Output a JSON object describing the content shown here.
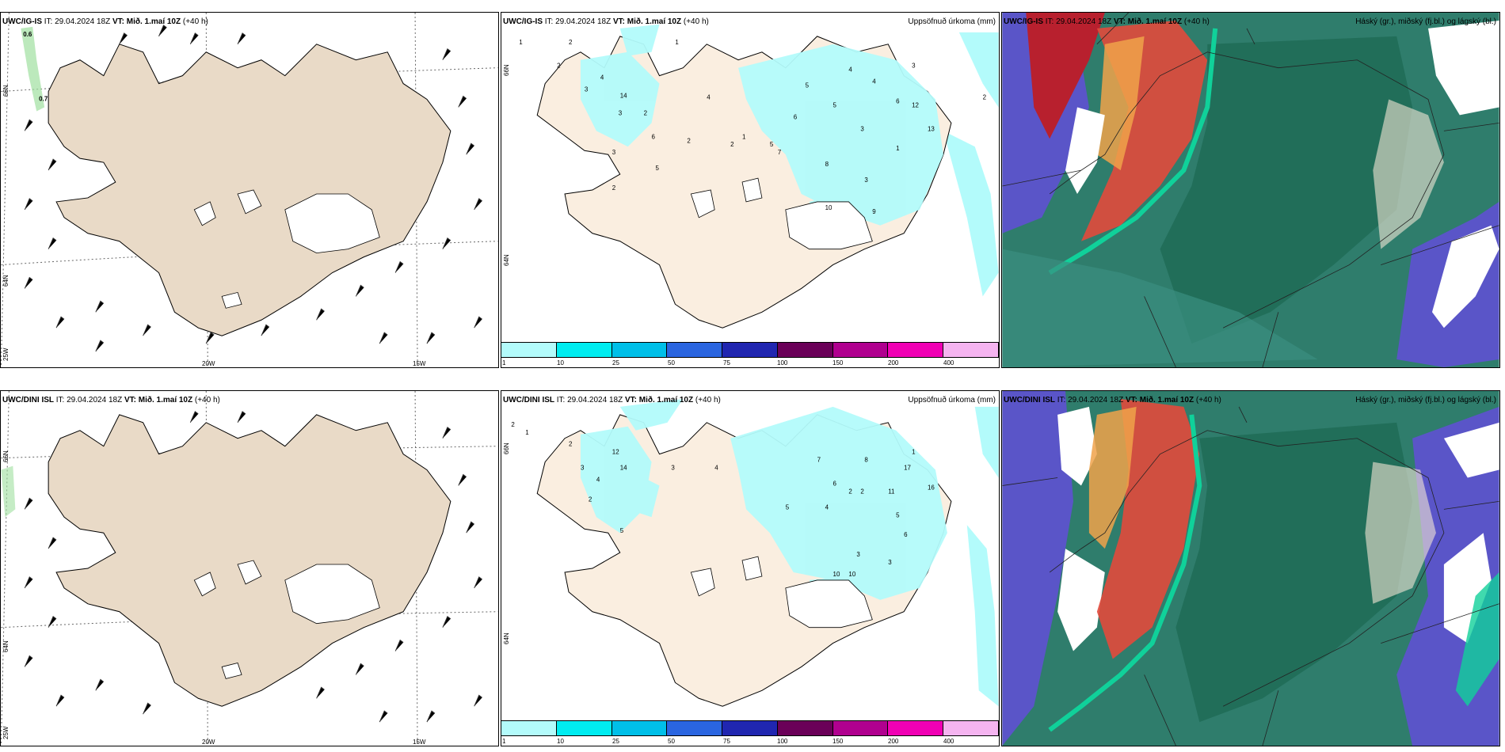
{
  "rows": [
    {
      "model": "UWC/IG-IS",
      "panels": [
        {
          "label": "UWC/IG-IS",
          "it": "IT: 29.04.2024 18Z",
          "vt_prefix": "VT:",
          "vt": "Mið. 1.maí 10Z",
          "lead": "(+40 h)",
          "right": "",
          "annotations": [
            "0.6",
            "0.7"
          ]
        },
        {
          "label": "UWC/IG-IS",
          "it": "IT: 29.04.2024 18Z",
          "vt_prefix": "VT:",
          "vt": "Mið. 1.maí 10Z",
          "lead": "(+40 h)",
          "right": "Uppsöfnuð úrkoma (mm)"
        },
        {
          "label": "UWC/IG-IS",
          "it": "IT: 29.04.2024 18Z",
          "vt_prefix": "VT:",
          "vt": "Mið. 1.maí 10Z",
          "lead": "(+40 h)",
          "right": "Háský (gr.), miðský (fj.bl.) og lágský (bl.)"
        }
      ]
    },
    {
      "model": "UWC/DINI ISL",
      "panels": [
        {
          "label": "UWC/DINI ISL",
          "it": "IT: 29.04.2024 18Z",
          "vt_prefix": "VT:",
          "vt": "Mið. 1.maí 10Z",
          "lead": "(+40 h)",
          "right": ""
        },
        {
          "label": "UWC/DINI ISL",
          "it": "IT: 29.04.2024 18Z",
          "vt_prefix": "VT:",
          "vt": "Mið. 1.maí 10Z",
          "lead": "(+40 h)",
          "right": "Uppsöfnuð úrkoma (mm)"
        },
        {
          "label": "UWC/DINI ISL",
          "it": "IT: 29.04.2024 18Z",
          "vt_prefix": "VT:",
          "vt": "Mið. 1.maí 10Z",
          "lead": "(+40 h)",
          "right": "Háský (gr.), miðský (fj.bl.) og lágský (bl.)"
        }
      ]
    }
  ],
  "axis_labels": {
    "lat66": "66N",
    "lat64": "64N",
    "lon25": "25W",
    "lon20": "20W",
    "lon15": "15W"
  },
  "precip_colorbar": {
    "ticks": [
      "1",
      "10",
      "25",
      "50",
      "75",
      "100",
      "150",
      "200",
      "400"
    ],
    "colors": [
      "#b3fbfb",
      "#00ecf0",
      "#00bfe8",
      "#2a65e0",
      "#2026b0",
      "#6a0058",
      "#b0008f",
      "#f000b4",
      "#f5b4f0"
    ]
  },
  "colors": {
    "land": "#e9dac7",
    "sea": "#ffffff",
    "precip_light": "#b3fbfb",
    "high_cloud": "#1f6b56",
    "mid_cloud": "#2aa88a",
    "low_cloud": "#5a55c8",
    "red": "#e24a3c",
    "orange": "#f0a24a"
  },
  "precip_numbers_top": [
    "1",
    "2",
    "1",
    "2",
    "3",
    "4",
    "14",
    "3",
    "6",
    "2",
    "3",
    "5",
    "2",
    "4",
    "2",
    "2",
    "1",
    "5",
    "7",
    "6",
    "8",
    "5",
    "3",
    "4",
    "6",
    "3",
    "1",
    "9",
    "10",
    "13",
    "12",
    "2",
    "5",
    "4",
    "3"
  ],
  "precip_numbers_bottom": [
    "2",
    "1",
    "2",
    "12",
    "14",
    "3",
    "4",
    "2",
    "5",
    "3",
    "4",
    "7",
    "8",
    "6",
    "2",
    "5",
    "4",
    "3",
    "10",
    "11",
    "16",
    "5",
    "6",
    "2",
    "3",
    "10",
    "17",
    "1"
  ]
}
